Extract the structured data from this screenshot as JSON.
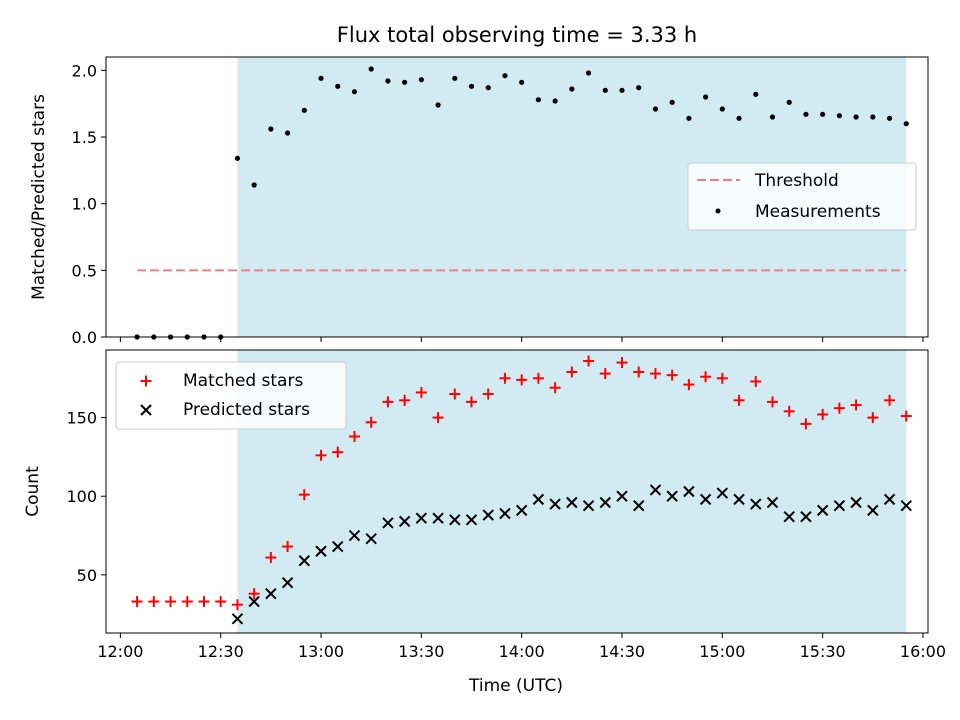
{
  "figure": {
    "title": "Flux total observing time = 3.33 h",
    "xlabel": "Time (UTC)",
    "x_ticks": [
      "12:00",
      "12:30",
      "13:00",
      "13:30",
      "14:00",
      "14:30",
      "15:00",
      "15:30",
      "16:00"
    ],
    "x_tick_minutes": [
      0,
      30,
      60,
      90,
      120,
      150,
      180,
      210,
      240
    ],
    "xlim_minutes": [
      -4.3,
      241.5
    ],
    "observing_window_minutes": [
      35,
      235
    ],
    "window_color": "#add8e6"
  },
  "chart_data": [
    {
      "type": "scatter",
      "ylabel": "Matched/Predicted stars",
      "ylim": [
        0,
        2.1
      ],
      "y_ticks": [
        "0.0",
        "0.5",
        "1.0",
        "1.5",
        "2.0"
      ],
      "y_tick_values": [
        0,
        0.5,
        1.0,
        1.5,
        2.0
      ],
      "legend_position": "center-right",
      "series": [
        {
          "name": "Threshold",
          "style": "dashed-line",
          "color": "#f08080",
          "x": [
            5,
            235
          ],
          "y": [
            0.5,
            0.5
          ]
        },
        {
          "name": "Measurements",
          "style": "dot",
          "color": "#000000",
          "x": [
            5,
            10,
            15,
            20,
            25,
            30,
            35,
            40,
            45,
            50,
            55,
            60,
            65,
            70,
            75,
            80,
            85,
            90,
            95,
            100,
            105,
            110,
            115,
            120,
            125,
            130,
            135,
            140,
            145,
            150,
            155,
            160,
            165,
            170,
            175,
            180,
            185,
            190,
            195,
            200,
            205,
            210,
            215,
            220,
            225,
            230,
            235
          ],
          "y": [
            0,
            0,
            0,
            0,
            0,
            0,
            1.34,
            1.14,
            1.56,
            1.53,
            1.7,
            1.94,
            1.88,
            1.84,
            2.01,
            1.92,
            1.91,
            1.93,
            1.74,
            1.94,
            1.88,
            1.87,
            1.96,
            1.91,
            1.78,
            1.77,
            1.86,
            1.98,
            1.85,
            1.85,
            1.87,
            1.71,
            1.76,
            1.64,
            1.8,
            1.71,
            1.64,
            1.82,
            1.65,
            1.76,
            1.67,
            1.67,
            1.66,
            1.65,
            1.65,
            1.64,
            1.6
          ]
        }
      ]
    },
    {
      "type": "scatter",
      "ylabel": "Count",
      "ylim": [
        13,
        193
      ],
      "y_ticks": [
        "50",
        "100",
        "150"
      ],
      "y_tick_values": [
        50,
        100,
        150
      ],
      "legend_position": "top-left",
      "series": [
        {
          "name": "Matched stars",
          "marker": "plus",
          "color": "#ff0000",
          "x": [
            5,
            10,
            15,
            20,
            25,
            30,
            35,
            40,
            45,
            50,
            55,
            60,
            65,
            70,
            75,
            80,
            85,
            90,
            95,
            100,
            105,
            110,
            115,
            120,
            125,
            130,
            135,
            140,
            145,
            150,
            155,
            160,
            165,
            170,
            175,
            180,
            185,
            190,
            195,
            200,
            205,
            210,
            215,
            220,
            225,
            230,
            235
          ],
          "y": [
            33,
            33,
            33,
            33,
            33,
            33,
            31,
            38,
            61,
            68,
            101,
            126,
            128,
            138,
            147,
            160,
            161,
            166,
            150,
            165,
            160,
            165,
            175,
            174,
            175,
            169,
            179,
            186,
            178,
            185,
            179,
            178,
            177,
            171,
            176,
            175,
            161,
            173,
            160,
            154,
            146,
            152,
            156,
            158,
            150,
            161,
            151
          ]
        },
        {
          "name": "Predicted stars",
          "marker": "x",
          "color": "#000000",
          "x": [
            35,
            40,
            45,
            50,
            55,
            60,
            65,
            70,
            75,
            80,
            85,
            90,
            95,
            100,
            105,
            110,
            115,
            120,
            125,
            130,
            135,
            140,
            145,
            150,
            155,
            160,
            165,
            170,
            175,
            180,
            185,
            190,
            195,
            200,
            205,
            210,
            215,
            220,
            225,
            230,
            235
          ],
          "y": [
            22,
            33,
            38,
            45,
            59,
            65,
            68,
            75,
            73,
            83,
            84,
            86,
            86,
            85,
            85,
            88,
            89,
            91,
            98,
            95,
            96,
            94,
            96,
            100,
            94,
            104,
            100,
            103,
            98,
            102,
            98,
            95,
            96,
            87,
            87,
            91,
            94,
            96,
            91,
            98,
            94
          ]
        }
      ]
    }
  ]
}
